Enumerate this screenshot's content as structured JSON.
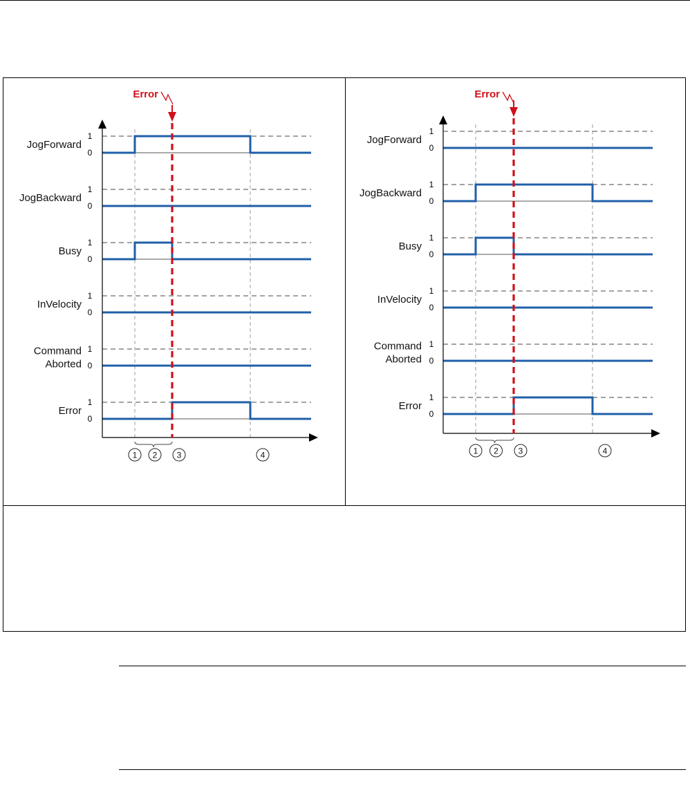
{
  "error_label": "Error",
  "level_high": "1",
  "level_low": "0",
  "markers": [
    "1",
    "2",
    "3",
    "4"
  ],
  "colors": {
    "signal": "#1f5fa8",
    "error_line": "#d0101a",
    "axis": "#000000",
    "gridline": "#555555"
  },
  "diagrams": [
    {
      "signals": [
        {
          "label_lines": [
            "JogForward"
          ],
          "states": [
            0,
            1,
            1,
            0
          ]
        },
        {
          "label_lines": [
            "JogBackward"
          ],
          "states": [
            0,
            0,
            0,
            0
          ]
        },
        {
          "label_lines": [
            "Busy"
          ],
          "states": [
            0,
            1,
            0,
            0
          ]
        },
        {
          "label_lines": [
            "InVelocity"
          ],
          "states": [
            0,
            0,
            0,
            0
          ]
        },
        {
          "label_lines": [
            "Command",
            "Aborted"
          ],
          "states": [
            0,
            0,
            0,
            0
          ]
        },
        {
          "label_lines": [
            "Error"
          ],
          "states": [
            0,
            0,
            1,
            0
          ]
        }
      ]
    },
    {
      "signals": [
        {
          "label_lines": [
            "JogForward"
          ],
          "states": [
            0,
            0,
            0,
            0
          ]
        },
        {
          "label_lines": [
            "JogBackward"
          ],
          "states": [
            0,
            1,
            1,
            0
          ]
        },
        {
          "label_lines": [
            "Busy"
          ],
          "states": [
            0,
            1,
            0,
            0
          ]
        },
        {
          "label_lines": [
            "InVelocity"
          ],
          "states": [
            0,
            0,
            0,
            0
          ]
        },
        {
          "label_lines": [
            "Command",
            "Aborted"
          ],
          "states": [
            0,
            0,
            0,
            0
          ]
        },
        {
          "label_lines": [
            "Error"
          ],
          "states": [
            0,
            0,
            1,
            0
          ]
        }
      ]
    }
  ]
}
